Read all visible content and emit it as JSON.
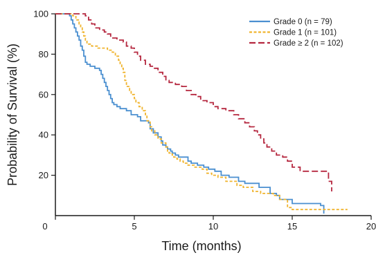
{
  "chart_data": {
    "type": "line",
    "subtype": "kaplan-meier step",
    "xlabel": "Time (months)",
    "ylabel": "Probability of Survival (%)",
    "xlim": [
      0,
      20
    ],
    "ylim": [
      0,
      100
    ],
    "xticks": [
      0,
      5,
      10,
      15,
      20
    ],
    "yticks": [
      20,
      40,
      60,
      80,
      100
    ],
    "grid": false,
    "legend_position": "top-right",
    "series": [
      {
        "name": "Grade 0 (n = 79)",
        "color": "#4a8fd0",
        "dash": "solid",
        "points": [
          [
            0,
            100
          ],
          [
            0.8,
            100
          ],
          [
            0.9,
            99
          ],
          [
            1.0,
            97
          ],
          [
            1.1,
            95
          ],
          [
            1.2,
            93
          ],
          [
            1.3,
            91
          ],
          [
            1.4,
            89
          ],
          [
            1.5,
            87
          ],
          [
            1.6,
            84
          ],
          [
            1.7,
            82
          ],
          [
            1.8,
            79
          ],
          [
            1.9,
            76
          ],
          [
            2.0,
            75
          ],
          [
            2.2,
            74
          ],
          [
            2.5,
            73
          ],
          [
            2.8,
            72
          ],
          [
            2.9,
            70
          ],
          [
            3.0,
            68
          ],
          [
            3.1,
            66
          ],
          [
            3.2,
            64
          ],
          [
            3.3,
            62
          ],
          [
            3.4,
            60
          ],
          [
            3.5,
            58
          ],
          [
            3.6,
            56
          ],
          [
            3.7,
            55
          ],
          [
            3.9,
            54
          ],
          [
            4.1,
            53
          ],
          [
            4.5,
            52
          ],
          [
            4.8,
            50
          ],
          [
            5.2,
            49
          ],
          [
            5.4,
            47
          ],
          [
            5.9,
            46
          ],
          [
            6.0,
            43
          ],
          [
            6.2,
            41
          ],
          [
            6.5,
            39
          ],
          [
            6.7,
            37
          ],
          [
            6.8,
            35
          ],
          [
            7.0,
            34
          ],
          [
            7.1,
            33
          ],
          [
            7.3,
            32
          ],
          [
            7.4,
            31
          ],
          [
            7.6,
            30
          ],
          [
            7.8,
            29
          ],
          [
            8.4,
            27
          ],
          [
            8.6,
            26
          ],
          [
            9.0,
            25
          ],
          [
            9.4,
            24
          ],
          [
            9.7,
            23
          ],
          [
            10.1,
            22
          ],
          [
            10.5,
            20
          ],
          [
            11.0,
            19
          ],
          [
            11.6,
            17
          ],
          [
            12.0,
            16
          ],
          [
            12.9,
            14
          ],
          [
            13.6,
            11
          ],
          [
            14.0,
            10
          ],
          [
            14.2,
            8
          ],
          [
            15.0,
            6
          ],
          [
            16.8,
            5
          ],
          [
            17.0,
            1
          ]
        ]
      },
      {
        "name": "Grade 1 (n = 101)",
        "color": "#f0b42e",
        "dash": "dashed",
        "points": [
          [
            0,
            100
          ],
          [
            0.8,
            100
          ],
          [
            1.1,
            99
          ],
          [
            1.3,
            97
          ],
          [
            1.5,
            95
          ],
          [
            1.6,
            93
          ],
          [
            1.7,
            91
          ],
          [
            1.8,
            89
          ],
          [
            1.9,
            87
          ],
          [
            2.0,
            85
          ],
          [
            2.3,
            84
          ],
          [
            2.7,
            83
          ],
          [
            3.3,
            82
          ],
          [
            3.6,
            81
          ],
          [
            3.8,
            79
          ],
          [
            4.0,
            77
          ],
          [
            4.1,
            75
          ],
          [
            4.2,
            73
          ],
          [
            4.3,
            71
          ],
          [
            4.4,
            67
          ],
          [
            4.5,
            64
          ],
          [
            4.7,
            62
          ],
          [
            4.8,
            60
          ],
          [
            5.0,
            58
          ],
          [
            5.1,
            56
          ],
          [
            5.3,
            54
          ],
          [
            5.5,
            52
          ],
          [
            5.7,
            50
          ],
          [
            5.8,
            47
          ],
          [
            6.0,
            44
          ],
          [
            6.1,
            42
          ],
          [
            6.3,
            40
          ],
          [
            6.5,
            38
          ],
          [
            6.7,
            36
          ],
          [
            7.0,
            34
          ],
          [
            7.1,
            32
          ],
          [
            7.2,
            31
          ],
          [
            7.4,
            30
          ],
          [
            7.5,
            29
          ],
          [
            7.7,
            28
          ],
          [
            7.9,
            27
          ],
          [
            8.1,
            26
          ],
          [
            8.4,
            25
          ],
          [
            8.8,
            24
          ],
          [
            9.3,
            23
          ],
          [
            9.6,
            21
          ],
          [
            9.9,
            20
          ],
          [
            10.3,
            19
          ],
          [
            10.8,
            17
          ],
          [
            11.5,
            15
          ],
          [
            11.9,
            14
          ],
          [
            12.5,
            12
          ],
          [
            13.0,
            11
          ],
          [
            13.8,
            10
          ],
          [
            14.2,
            8
          ],
          [
            14.7,
            4
          ],
          [
            15.0,
            3
          ],
          [
            18.5,
            3
          ]
        ]
      },
      {
        "name": "Grade ≥ 2 (n = 102)",
        "color": "#b5273f",
        "dash": "long-dashed",
        "points": [
          [
            0,
            100
          ],
          [
            1.8,
            100
          ],
          [
            1.9,
            99
          ],
          [
            2.1,
            97
          ],
          [
            2.3,
            95
          ],
          [
            2.5,
            93
          ],
          [
            2.8,
            92
          ],
          [
            3.1,
            91
          ],
          [
            3.3,
            90
          ],
          [
            3.5,
            88
          ],
          [
            3.9,
            87
          ],
          [
            4.3,
            86
          ],
          [
            4.5,
            84
          ],
          [
            4.8,
            83
          ],
          [
            5.0,
            81
          ],
          [
            5.2,
            79
          ],
          [
            5.4,
            77
          ],
          [
            5.7,
            75
          ],
          [
            6.0,
            74
          ],
          [
            6.2,
            73
          ],
          [
            6.5,
            71
          ],
          [
            6.8,
            69
          ],
          [
            7.0,
            67
          ],
          [
            7.2,
            66
          ],
          [
            7.6,
            65
          ],
          [
            8.0,
            64
          ],
          [
            8.3,
            62
          ],
          [
            8.6,
            60
          ],
          [
            8.9,
            59
          ],
          [
            9.2,
            57
          ],
          [
            9.6,
            56
          ],
          [
            10.0,
            54
          ],
          [
            10.3,
            53
          ],
          [
            10.8,
            52
          ],
          [
            11.3,
            50
          ],
          [
            11.6,
            48
          ],
          [
            12.0,
            46
          ],
          [
            12.3,
            44
          ],
          [
            12.6,
            42
          ],
          [
            12.8,
            40
          ],
          [
            13.0,
            38
          ],
          [
            13.2,
            36
          ],
          [
            13.4,
            34
          ],
          [
            13.7,
            32
          ],
          [
            14.0,
            30
          ],
          [
            14.4,
            29
          ],
          [
            14.7,
            27
          ],
          [
            15.0,
            24
          ],
          [
            15.5,
            22
          ],
          [
            17.2,
            22
          ],
          [
            17.3,
            17
          ],
          [
            17.4,
            17
          ],
          [
            17.5,
            12
          ]
        ]
      }
    ]
  }
}
